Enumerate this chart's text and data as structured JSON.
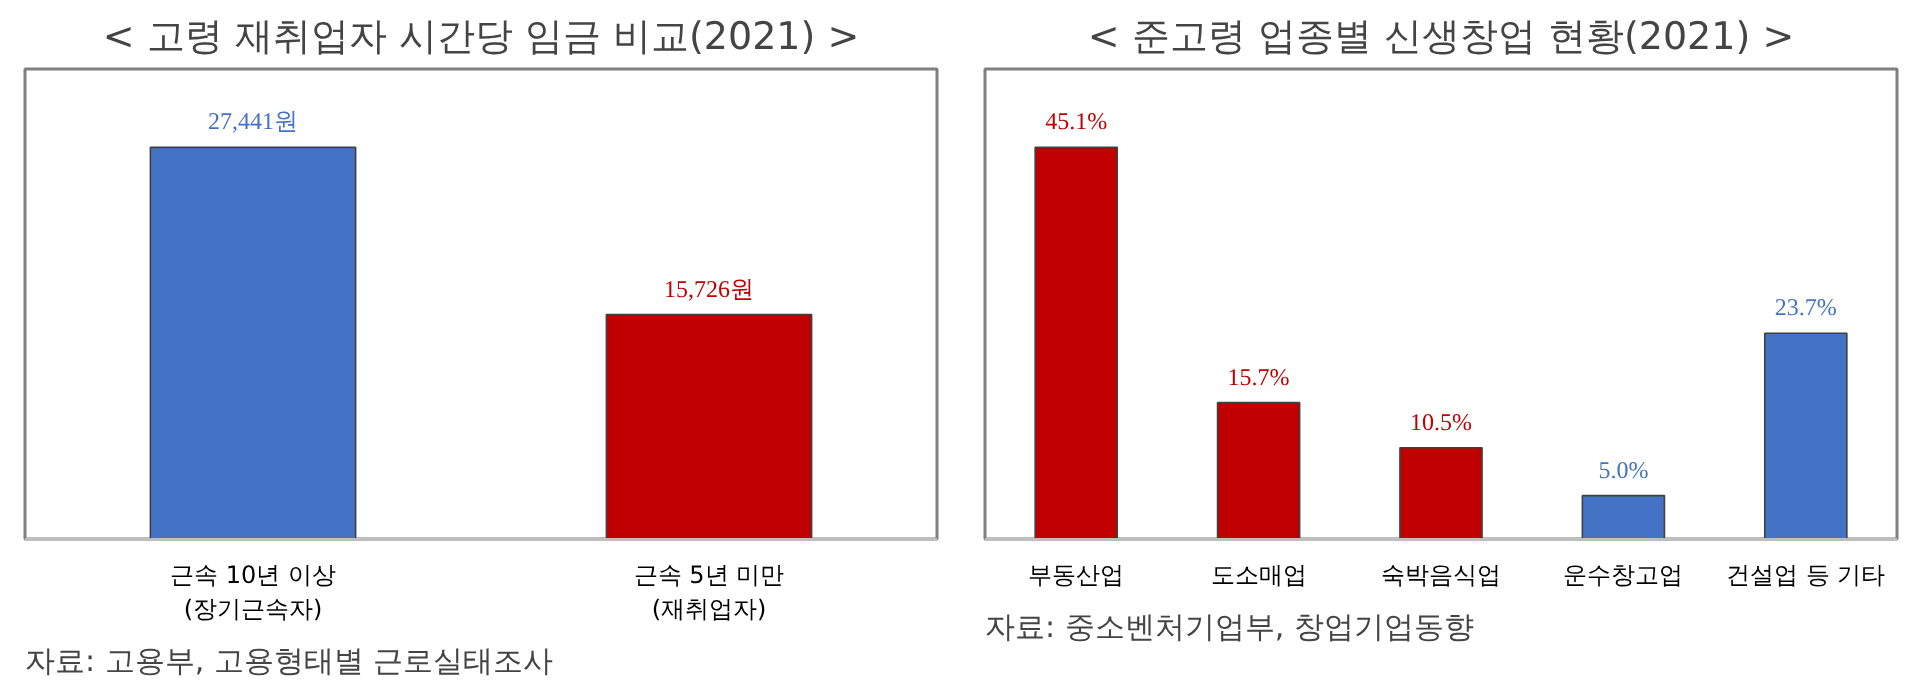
{
  "chart_data": [
    {
      "type": "bar",
      "title": "< 고령 재취업자 시간당 임금 비교(2021) >",
      "categories": [
        "근속 10년 이상\n(장기근속자)",
        "근속 5년 미만\n(재취업자)"
      ],
      "values": [
        27441,
        15726
      ],
      "colors": [
        "#4472c4",
        "#c00000"
      ],
      "value_labels": [
        "27,441원",
        "15,726원"
      ],
      "grid": false,
      "annotations": [
        "자료: 고용부, 고용형태별 근로실태조사"
      ]
    },
    {
      "type": "bar",
      "title": "< 준고령 업종별 신생창업 현황(2021) >",
      "categories": [
        "부동산업",
        "도소매업",
        "숙박음식업",
        "운수창고업",
        "건설업 등 기타"
      ],
      "values": [
        45.1,
        15.7,
        10.5,
        5.0,
        23.7
      ],
      "colors": [
        "#c00000",
        "#c00000",
        "#c00000",
        "#4472c4",
        "#4472c4"
      ],
      "value_labels": [
        "45.1%",
        "15.7%",
        "10.5%",
        "5.0%",
        "23.7%"
      ],
      "grid": false,
      "annotations": [
        "자료: 중소벤처기업부, 창업기업동향"
      ]
    }
  ]
}
